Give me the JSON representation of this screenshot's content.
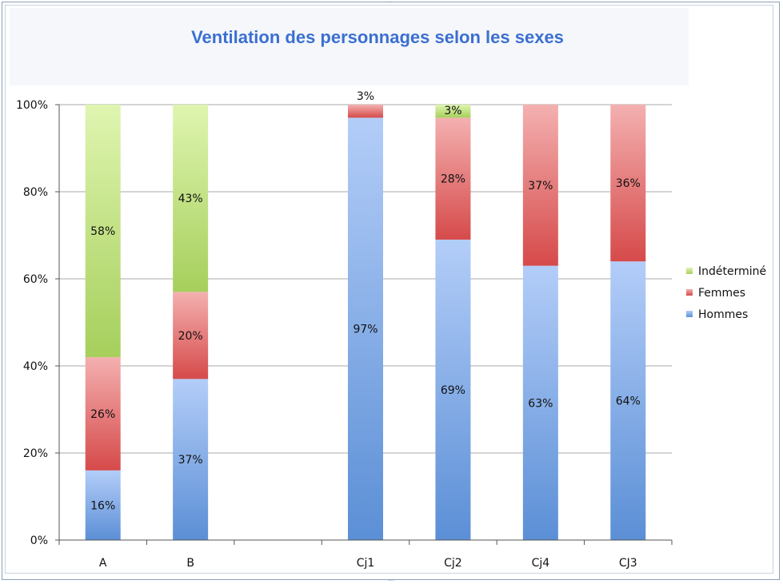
{
  "chart_data": {
    "type": "bar",
    "stacked": "percent",
    "title": "Ventilation des personnages selon les sexes",
    "categories": [
      "A",
      "B",
      "",
      "Cj1",
      "Cj2",
      "Cj4",
      "CJ3"
    ],
    "series": [
      {
        "name": "Hommes",
        "values": [
          16,
          37,
          null,
          97,
          69,
          63,
          64
        ],
        "labels": [
          "16%",
          "37%",
          "",
          "97%",
          "69%",
          "63%",
          "64%"
        ]
      },
      {
        "name": "Femmes",
        "values": [
          26,
          20,
          null,
          3,
          28,
          37,
          36
        ],
        "labels": [
          "26%",
          "20%",
          "",
          "3%",
          "28%",
          "37%",
          "36%"
        ]
      },
      {
        "name": "Indéterminé",
        "values": [
          58,
          43,
          null,
          0,
          3,
          0,
          0
        ],
        "labels": [
          "58%",
          "43%",
          "",
          "",
          "3%",
          "",
          ""
        ]
      }
    ],
    "y_ticks": [
      "0%",
      "20%",
      "40%",
      "60%",
      "80%",
      "100%"
    ],
    "ylim": [
      0,
      100
    ],
    "grid": true,
    "legend_position": "right",
    "colors": {
      "Hommes": [
        "#5b8fd6",
        "#b3cdf8"
      ],
      "Femmes": [
        "#d64a4a",
        "#f4b0b0"
      ],
      "Indéterminé": [
        "#a6cf5c",
        "#dff5b0"
      ]
    }
  }
}
